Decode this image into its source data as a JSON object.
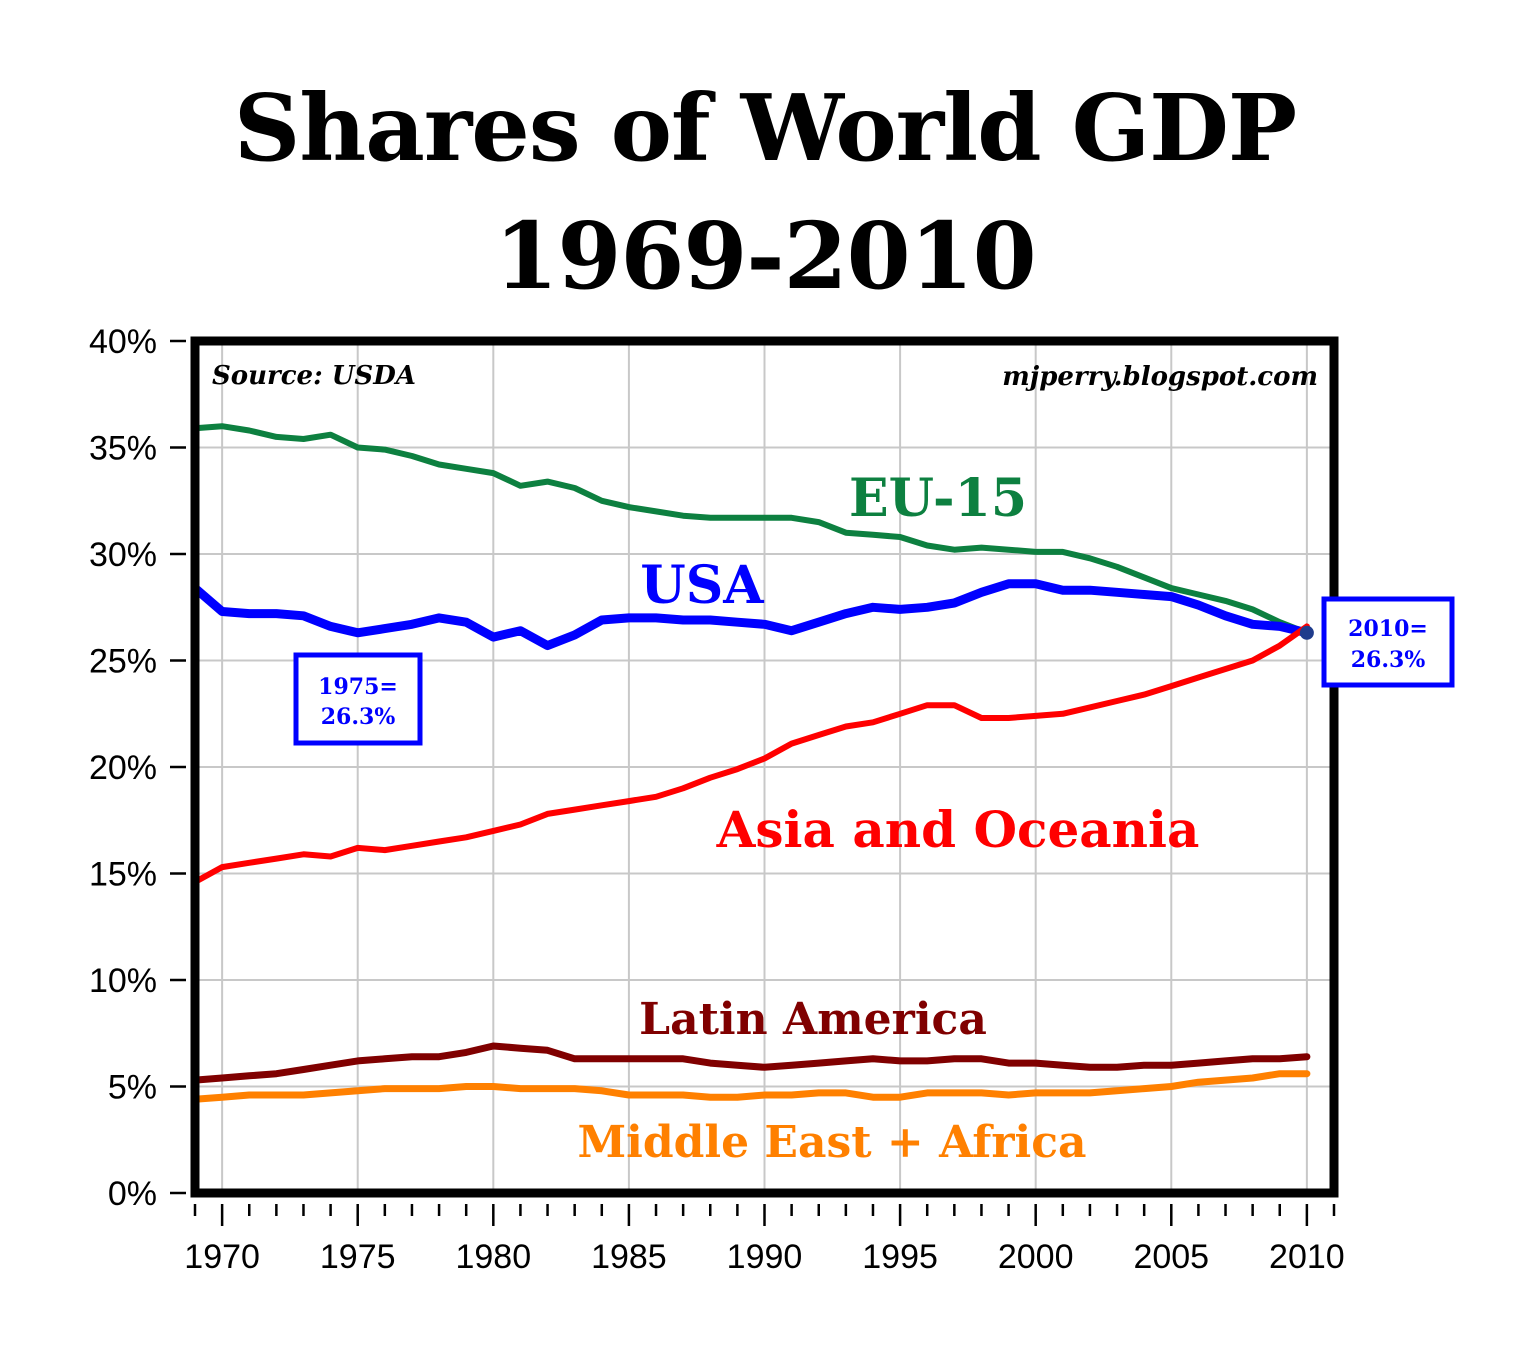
{
  "title_line1": "Shares of World GDP",
  "title_line2": "1969-2010",
  "source_note": "Source: USDA",
  "credit_note": "mjperry.blogspot.com",
  "callouts": [
    {
      "line1": "1975=",
      "line2": "26.3%"
    },
    {
      "line1": "2010=",
      "line2": "26.3%"
    }
  ],
  "chart_data": {
    "type": "line",
    "x": [
      1969,
      1970,
      1971,
      1972,
      1973,
      1974,
      1975,
      1976,
      1977,
      1978,
      1979,
      1980,
      1981,
      1982,
      1983,
      1984,
      1985,
      1986,
      1987,
      1988,
      1989,
      1990,
      1991,
      1992,
      1993,
      1994,
      1995,
      1996,
      1997,
      1998,
      1999,
      2000,
      2001,
      2002,
      2003,
      2004,
      2005,
      2006,
      2007,
      2008,
      2009,
      2010
    ],
    "xlim": [
      1969,
      2011
    ],
    "ylim": [
      0,
      40
    ],
    "x_ticks": [
      1970,
      1975,
      1980,
      1985,
      1990,
      1995,
      2000,
      2005,
      2010
    ],
    "x_tick_labels": [
      "1970",
      "1975",
      "1980",
      "1985",
      "1990",
      "1995",
      "2000",
      "2005",
      "2010"
    ],
    "y_ticks": [
      0,
      5,
      10,
      15,
      20,
      25,
      30,
      35,
      40
    ],
    "y_tick_labels": [
      "0%",
      "5%",
      "10%",
      "15%",
      "20%",
      "25%",
      "30%",
      "35%",
      "40%"
    ],
    "grid": true,
    "series": [
      {
        "name": "EU-15",
        "color": "#0d8040",
        "values": [
          35.9,
          36.0,
          35.8,
          35.5,
          35.4,
          35.6,
          35.0,
          34.9,
          34.6,
          34.2,
          34.0,
          33.8,
          33.2,
          33.4,
          33.1,
          32.5,
          32.2,
          32.0,
          31.8,
          31.7,
          31.7,
          31.7,
          31.7,
          31.5,
          31.0,
          30.9,
          30.8,
          30.4,
          30.2,
          30.3,
          30.2,
          30.1,
          30.1,
          29.8,
          29.4,
          28.9,
          28.4,
          28.1,
          27.8,
          27.4,
          26.8,
          26.3
        ]
      },
      {
        "name": "USA",
        "color": "#0000ff",
        "values": [
          28.4,
          27.3,
          27.2,
          27.2,
          27.1,
          26.6,
          26.3,
          26.5,
          26.7,
          27.0,
          26.8,
          26.1,
          26.4,
          25.7,
          26.2,
          26.9,
          27.0,
          27.0,
          26.9,
          26.9,
          26.8,
          26.7,
          26.4,
          26.8,
          27.2,
          27.5,
          27.4,
          27.5,
          27.7,
          28.2,
          28.6,
          28.6,
          28.3,
          28.3,
          28.2,
          28.1,
          28.0,
          27.6,
          27.1,
          26.7,
          26.6,
          26.3
        ]
      },
      {
        "name": "Asia and Oceania",
        "color": "#ff0000",
        "values": [
          14.6,
          15.3,
          15.5,
          15.7,
          15.9,
          15.8,
          16.2,
          16.1,
          16.3,
          16.5,
          16.7,
          17.0,
          17.3,
          17.8,
          18.0,
          18.2,
          18.4,
          18.6,
          19.0,
          19.5,
          19.9,
          20.4,
          21.1,
          21.5,
          21.9,
          22.1,
          22.5,
          22.9,
          22.9,
          22.3,
          22.3,
          22.4,
          22.5,
          22.8,
          23.1,
          23.4,
          23.8,
          24.2,
          24.6,
          25.0,
          25.7,
          26.6
        ]
      },
      {
        "name": "Latin America",
        "color": "#800000",
        "values": [
          5.3,
          5.4,
          5.5,
          5.6,
          5.8,
          6.0,
          6.2,
          6.3,
          6.4,
          6.4,
          6.6,
          6.9,
          6.8,
          6.7,
          6.3,
          6.3,
          6.3,
          6.3,
          6.3,
          6.1,
          6.0,
          5.9,
          6.0,
          6.1,
          6.2,
          6.3,
          6.2,
          6.2,
          6.3,
          6.3,
          6.1,
          6.1,
          6.0,
          5.9,
          5.9,
          6.0,
          6.0,
          6.1,
          6.2,
          6.3,
          6.3,
          6.4
        ]
      },
      {
        "name": "Middle East + Africa",
        "color": "#ff8000",
        "values": [
          4.4,
          4.5,
          4.6,
          4.6,
          4.6,
          4.7,
          4.8,
          4.9,
          4.9,
          4.9,
          5.0,
          5.0,
          4.9,
          4.9,
          4.9,
          4.8,
          4.6,
          4.6,
          4.6,
          4.5,
          4.5,
          4.6,
          4.6,
          4.7,
          4.7,
          4.5,
          4.5,
          4.7,
          4.7,
          4.7,
          4.6,
          4.7,
          4.7,
          4.7,
          4.8,
          4.9,
          5.0,
          5.2,
          5.3,
          5.4,
          5.6,
          5.6
        ]
      }
    ]
  }
}
